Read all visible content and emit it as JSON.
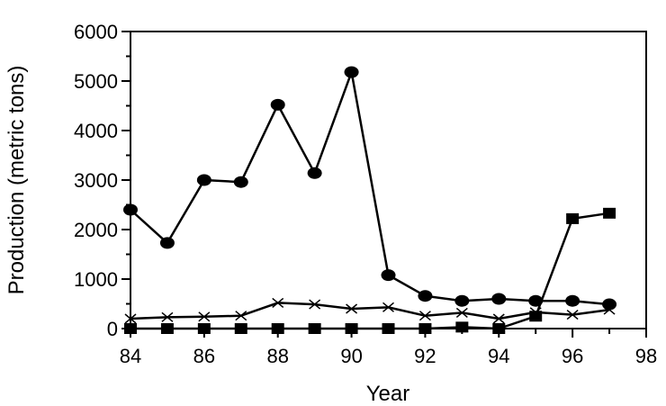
{
  "chart_data": {
    "type": "line",
    "title": "",
    "xlabel": "Year",
    "ylabel": "Production (metric tons)",
    "xlim": [
      84,
      98
    ],
    "ylim": [
      0,
      6000
    ],
    "xticks": [
      84,
      86,
      88,
      90,
      92,
      94,
      96,
      98
    ],
    "yticks": [
      0,
      1000,
      2000,
      3000,
      4000,
      5000,
      6000
    ],
    "grid": false,
    "legend": "none",
    "series": [
      {
        "marker": "circle",
        "color": "#000000",
        "x": [
          84,
          85,
          86,
          87,
          88,
          89,
          90,
          91,
          92,
          93,
          94,
          95,
          96,
          97
        ],
        "y": [
          2400,
          1730,
          3000,
          2960,
          4520,
          3140,
          5180,
          1080,
          660,
          560,
          600,
          560,
          560,
          490
        ]
      },
      {
        "marker": "square",
        "color": "#000000",
        "x": [
          84,
          85,
          86,
          87,
          88,
          89,
          90,
          91,
          92,
          93,
          94,
          95,
          96,
          97
        ],
        "y": [
          0,
          0,
          0,
          0,
          0,
          0,
          0,
          0,
          0,
          30,
          0,
          250,
          2220,
          2330
        ]
      },
      {
        "marker": "x",
        "color": "#000000",
        "x": [
          84,
          85,
          86,
          87,
          88,
          89,
          90,
          91,
          92,
          93,
          94,
          95,
          96,
          97
        ],
        "y": [
          200,
          230,
          240,
          260,
          520,
          490,
          400,
          430,
          260,
          320,
          200,
          330,
          280,
          380
        ]
      }
    ]
  }
}
